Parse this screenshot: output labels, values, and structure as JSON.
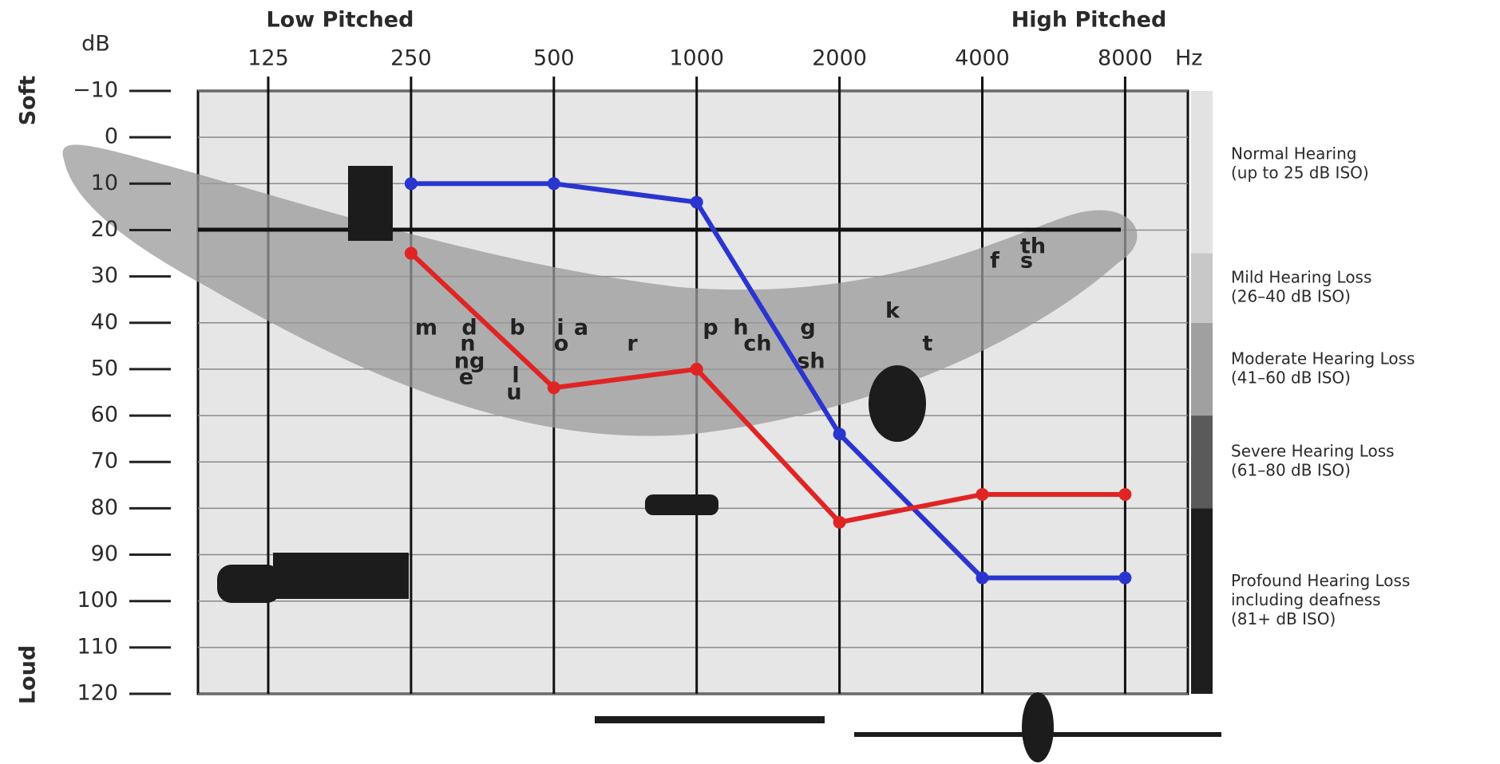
{
  "chart_data": {
    "type": "line",
    "top_labels": [
      "Low Pitched",
      "High Pitched"
    ],
    "y_label": "dB",
    "y_end_labels": [
      "Soft",
      "Loud"
    ],
    "x_unit": "Hz",
    "categories": [
      "125",
      "250",
      "500",
      "1000",
      "2000",
      "4000",
      "8000"
    ],
    "ylim": [
      -10,
      120
    ],
    "inverted_y": true,
    "yticks": [
      {
        "value": -10,
        "label": "−10"
      },
      0,
      10,
      20,
      30,
      40,
      50,
      60,
      70,
      80,
      90,
      100,
      110,
      120
    ],
    "grid": true,
    "series": [
      {
        "color": "#2a35d0",
        "values": [
          null,
          10,
          10,
          14,
          64,
          95,
          95
        ]
      },
      {
        "color": "#e02424",
        "values": [
          null,
          25,
          54,
          50,
          83,
          77,
          77
        ]
      }
    ],
    "hearing_levels": [
      {
        "lines": [
          "Normal Hearing",
          "(up to 25 dB ISO)"
        ],
        "range": [
          -10,
          25
        ],
        "color": "#e2e2e2"
      },
      {
        "lines": [
          "Mild Hearing Loss",
          "(26–40 dB ISO)"
        ],
        "range": [
          25,
          40
        ],
        "color": "#c8c8c8"
      },
      {
        "lines": [
          "Moderate Hearing Loss",
          "(41–60 dB ISO)"
        ],
        "range": [
          40,
          60
        ],
        "color": "#a0a0a0"
      },
      {
        "lines": [
          "Severe Hearing Loss",
          "(61–80 dB ISO)"
        ],
        "range": [
          60,
          80
        ],
        "color": "#5a5a5a"
      },
      {
        "lines": [
          "Profound Hearing Loss",
          "including deafness",
          "(81+ dB ISO)"
        ],
        "range": [
          80,
          120
        ],
        "color": "#1e1e1e"
      }
    ],
    "speech_sounds": [
      "m",
      "d",
      "b",
      "i",
      "a",
      "n",
      "o",
      "r",
      "ng",
      "l",
      "e",
      "u",
      "p",
      "h",
      "g",
      "ch",
      "sh",
      "k",
      "t",
      "f",
      "th",
      "s"
    ]
  }
}
